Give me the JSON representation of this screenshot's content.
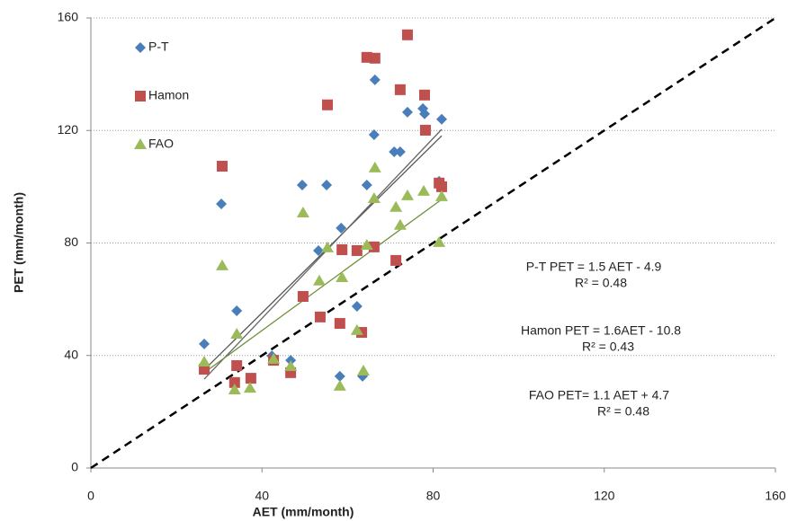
{
  "chart_data": {
    "type": "scatter",
    "xlabel": "AET (mm/month)",
    "ylabel": "PET (mm/month)",
    "xlim": [
      0,
      160
    ],
    "ylim": [
      0,
      160
    ],
    "xticks": [
      0,
      40,
      80,
      120,
      160
    ],
    "yticks": [
      0,
      40,
      80,
      120,
      160
    ],
    "grid": true,
    "legend": "upper left",
    "series": [
      {
        "name": "P-T",
        "color": "#4a7ebb",
        "marker": "diamond",
        "x": [
          26.5,
          30.5,
          34.1,
          42.3,
          46.7,
          49.4,
          53.2,
          55.1,
          58.5,
          58.2,
          62.2,
          63.5,
          64.5,
          66.2,
          66.4,
          70.9,
          72.3,
          74.0,
          77.6,
          78.0,
          81.4,
          82.0
        ],
        "values": [
          44.1,
          93.9,
          55.9,
          39.9,
          38.3,
          100.6,
          77.3,
          100.6,
          85.3,
          32.6,
          57.5,
          32.6,
          100.6,
          118.5,
          138,
          112.4,
          112.4,
          126.5,
          127.8,
          125.9,
          101.9,
          124.0
        ]
      },
      {
        "name": "Hamon",
        "color": "#c0504d",
        "marker": "square",
        "x": [
          26.5,
          30.7,
          34.1,
          33.6,
          37.4,
          42.7,
          46.7,
          49.6,
          53.6,
          55.3,
          58.7,
          58.2,
          62.2,
          63.3,
          64.5,
          66.4,
          66.2,
          71.3,
          72.3,
          74.0,
          78.0,
          78.2,
          81.4,
          82.0
        ],
        "values": [
          35.1,
          107.3,
          36.4,
          30.4,
          31.9,
          38.3,
          33.9,
          61.0,
          53.7,
          129.1,
          77.6,
          51.4,
          77.3,
          48.2,
          146.0,
          145.7,
          78.6,
          73.8,
          134.5,
          154,
          132.6,
          120.1,
          101.3,
          100.0
        ]
      },
      {
        "name": "FAO",
        "color": "#9bbb59",
        "marker": "triangle",
        "x": [
          26.5,
          30.7,
          34.1,
          33.6,
          37.2,
          42.7,
          46.7,
          49.6,
          53.4,
          55.3,
          58.7,
          58.2,
          62.2,
          63.7,
          64.5,
          66.4,
          66.2,
          71.3,
          72.3,
          74.0,
          77.8,
          81.4,
          82.0
        ],
        "values": [
          37.7,
          71.9,
          47.6,
          27.8,
          28.4,
          38.7,
          36.1,
          90.7,
          66.5,
          78.3,
          67.7,
          29.1,
          48.9,
          34.5,
          79.2,
          106.7,
          95.8,
          92.7,
          86.3,
          96.8,
          98.4,
          80.2,
          96.5
        ]
      }
    ],
    "trendlines": [
      {
        "color": "#555555",
        "x": [
          26.5,
          82
        ],
        "values": [
          34.9,
          118.1
        ]
      },
      {
        "color": "#666666",
        "x": [
          26.5,
          82
        ],
        "values": [
          31.6,
          120.4
        ]
      },
      {
        "color": "#6e8f3a",
        "x": [
          26.5,
          82
        ],
        "values": [
          33.9,
          95.5
        ]
      }
    ],
    "reference_line": {
      "color": "#000000",
      "x": [
        0,
        160
      ],
      "values": [
        0,
        160
      ]
    },
    "annotations": [
      "P-T PET = 1.5 AET - 4.9",
      "R² = 0.48",
      "Hamon PET = 1.6AET - 10.8",
      "R² = 0.43",
      "FAO PET= 1.1 AET + 4.7",
      "R² = 0.48"
    ]
  }
}
